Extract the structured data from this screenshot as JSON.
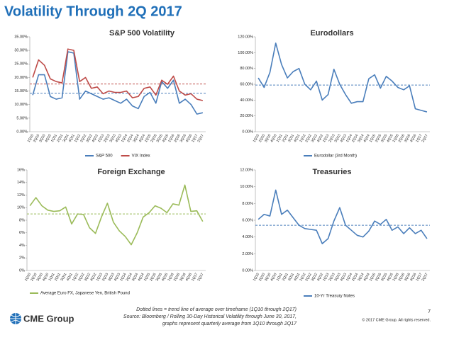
{
  "title": "Volatility Through 2Q 2017",
  "footer": {
    "note": "Dotted lines = trend line of average over timeframe (1Q10 through 2Q17)",
    "source": "Source:  Bloomberg / Rolling 30-Day Historical Volatility through June 30, 2017,",
    "source2": "graphs represent quarterly average from 1Q10 through 2Q17",
    "page": "7",
    "copyright": "© 2017 CME Group. All rights reserved.",
    "logo": "CME Group"
  },
  "chart_data": [
    {
      "type": "line",
      "title": "S&P 500 Volatility",
      "categories": [
        "1Q10",
        "2Q10",
        "3Q10",
        "4Q10",
        "1Q11",
        "2Q11",
        "3Q11",
        "4Q11",
        "1Q12",
        "2Q12",
        "3Q12",
        "4Q12",
        "1Q13",
        "2Q13",
        "3Q13",
        "4Q13",
        "1Q14",
        "2Q14",
        "3Q14",
        "4Q14",
        "1Q15",
        "2Q15",
        "3Q15",
        "4Q15",
        "1Q16",
        "2Q16",
        "3Q16",
        "4Q16",
        "1Q17",
        "2Q17"
      ],
      "series": [
        {
          "name": "S&P 500",
          "color": "#4a7ebb",
          "values": [
            13.5,
            21,
            21,
            13,
            12,
            12.5,
            29.5,
            29,
            12,
            15,
            14,
            13,
            12,
            12.5,
            11.5,
            10.5,
            12,
            9.5,
            8.5,
            13,
            14.5,
            10.5,
            18.5,
            16,
            19,
            10.5,
            12,
            10,
            6.5,
            7
          ]
        },
        {
          "name": "VIX Index",
          "color": "#be4b48",
          "values": [
            20,
            26.5,
            24.5,
            19.5,
            18.5,
            18,
            30.5,
            30,
            18.5,
            20,
            16,
            16.5,
            14,
            15,
            14.5,
            14.5,
            15,
            12.5,
            13,
            16,
            16.5,
            13.5,
            19,
            17.5,
            20.5,
            15,
            13.5,
            14,
            12,
            11.5
          ]
        }
      ],
      "average_lines": [
        {
          "value": 17.6,
          "color": "#c0504d"
        },
        {
          "value": 14.2,
          "color": "#4f81bd"
        }
      ],
      "ylim": [
        0,
        35
      ],
      "yticks": [
        {
          "value": 0,
          "label": "0.00%"
        },
        {
          "value": 5,
          "label": "5.00%"
        },
        {
          "value": 10,
          "label": "10.00%"
        },
        {
          "value": 15,
          "label": "15.00%"
        },
        {
          "value": 20,
          "label": "20.00%"
        },
        {
          "value": 25,
          "label": "25.00%"
        },
        {
          "value": 30,
          "label": "30.00%"
        },
        {
          "value": 35,
          "label": "35.00%"
        }
      ],
      "grid": false
    },
    {
      "type": "line",
      "title": "Eurodollars",
      "categories": [
        "1Q10",
        "2Q10",
        "3Q10",
        "4Q10",
        "1Q11",
        "2Q11",
        "3Q11",
        "4Q11",
        "1Q12",
        "2Q12",
        "3Q12",
        "4Q12",
        "1Q13",
        "2Q13",
        "3Q13",
        "4Q13",
        "1Q14",
        "2Q14",
        "3Q14",
        "4Q14",
        "1Q15",
        "2Q15",
        "3Q15",
        "4Q15",
        "1Q16",
        "2Q16",
        "3Q16",
        "4Q16",
        "1Q17",
        "2Q17"
      ],
      "series": [
        {
          "name": "Eurodollar (3rd Month)",
          "color": "#4a7ebb",
          "values": [
            68,
            56,
            75,
            112,
            85,
            68,
            76,
            80,
            60,
            53,
            64,
            40,
            47,
            79,
            60,
            47,
            36,
            38,
            38,
            67,
            72,
            55,
            70,
            64,
            56,
            53,
            58,
            29,
            27,
            25
          ]
        }
      ],
      "average_lines": [
        {
          "value": 59,
          "color": "#4f81bd"
        }
      ],
      "ylim": [
        0,
        120
      ],
      "yticks": [
        {
          "value": 0,
          "label": "0.00%"
        },
        {
          "value": 20,
          "label": "20.00%"
        },
        {
          "value": 40,
          "label": "40.00%"
        },
        {
          "value": 60,
          "label": "60.00%"
        },
        {
          "value": 80,
          "label": "80.00%"
        },
        {
          "value": 100,
          "label": "100.00%"
        },
        {
          "value": 120,
          "label": "120.00%"
        }
      ],
      "grid": false
    },
    {
      "type": "line",
      "title": "Foreign Exchange",
      "categories": [
        "1Q10",
        "2Q10",
        "3Q10",
        "4Q10",
        "1Q11",
        "2Q11",
        "3Q11",
        "4Q11",
        "1Q12",
        "2Q12",
        "3Q12",
        "4Q12",
        "1Q13",
        "2Q13",
        "3Q13",
        "4Q13",
        "1Q14",
        "2Q14",
        "3Q14",
        "4Q14",
        "1Q15",
        "2Q15",
        "3Q15",
        "4Q15",
        "1Q16",
        "2Q16",
        "3Q16",
        "4Q16",
        "1Q17",
        "2Q17"
      ],
      "series": [
        {
          "name": "Average Euro FX, Japanese Yen, British Pound",
          "color": "#9bbb59",
          "values": [
            10.3,
            11.6,
            10.3,
            9.6,
            9.4,
            9.5,
            10.1,
            7.4,
            9.0,
            8.9,
            6.8,
            5.9,
            8.5,
            10.7,
            7.7,
            6.3,
            5.4,
            4.1,
            6.0,
            8.5,
            9.2,
            10.3,
            9.9,
            9.2,
            10.6,
            10.4,
            13.6,
            9.4,
            9.5,
            7.8
          ]
        }
      ],
      "average_lines": [
        {
          "value": 9.0,
          "color": "#9bbb59"
        }
      ],
      "ylim": [
        0,
        16
      ],
      "yticks": [
        {
          "value": 0,
          "label": "0%"
        },
        {
          "value": 2,
          "label": "2%"
        },
        {
          "value": 4,
          "label": "4%"
        },
        {
          "value": 6,
          "label": "6%"
        },
        {
          "value": 8,
          "label": "8%"
        },
        {
          "value": 10,
          "label": "10%"
        },
        {
          "value": 12,
          "label": "12%"
        },
        {
          "value": 14,
          "label": "14%"
        },
        {
          "value": 16,
          "label": "16%"
        }
      ],
      "grid": false
    },
    {
      "type": "line",
      "title": "Treasuries",
      "categories": [
        "1Q10",
        "2Q10",
        "3Q10",
        "4Q10",
        "1Q11",
        "2Q11",
        "3Q11",
        "4Q11",
        "1Q12",
        "2Q12",
        "3Q12",
        "4Q12",
        "1Q13",
        "2Q13",
        "3Q13",
        "4Q13",
        "1Q14",
        "2Q14",
        "3Q14",
        "4Q14",
        "1Q15",
        "2Q15",
        "3Q15",
        "4Q15",
        "1Q16",
        "2Q16",
        "3Q16",
        "4Q16",
        "1Q17",
        "2Q17"
      ],
      "series": [
        {
          "name": "10-Yr Treasury Notes",
          "color": "#4a7ebb",
          "values": [
            6.1,
            6.7,
            6.5,
            9.6,
            6.7,
            7.2,
            6.3,
            5.4,
            5.0,
            4.9,
            4.8,
            3.2,
            3.8,
            5.9,
            7.5,
            5.4,
            4.8,
            4.2,
            4.0,
            4.7,
            5.9,
            5.5,
            6.1,
            4.8,
            5.2,
            4.4,
            5.1,
            4.4,
            4.8,
            3.8
          ]
        }
      ],
      "average_lines": [
        {
          "value": 5.4,
          "color": "#4f81bd"
        }
      ],
      "ylim": [
        0,
        12
      ],
      "yticks": [
        {
          "value": 0,
          "label": "0.00%"
        },
        {
          "value": 2,
          "label": "2.00%"
        },
        {
          "value": 4,
          "label": "4.00%"
        },
        {
          "value": 6,
          "label": "6.00%"
        },
        {
          "value": 8,
          "label": "8.00%"
        },
        {
          "value": 10,
          "label": "10.00%"
        },
        {
          "value": 12,
          "label": "12.00%"
        }
      ],
      "grid": false
    }
  ]
}
